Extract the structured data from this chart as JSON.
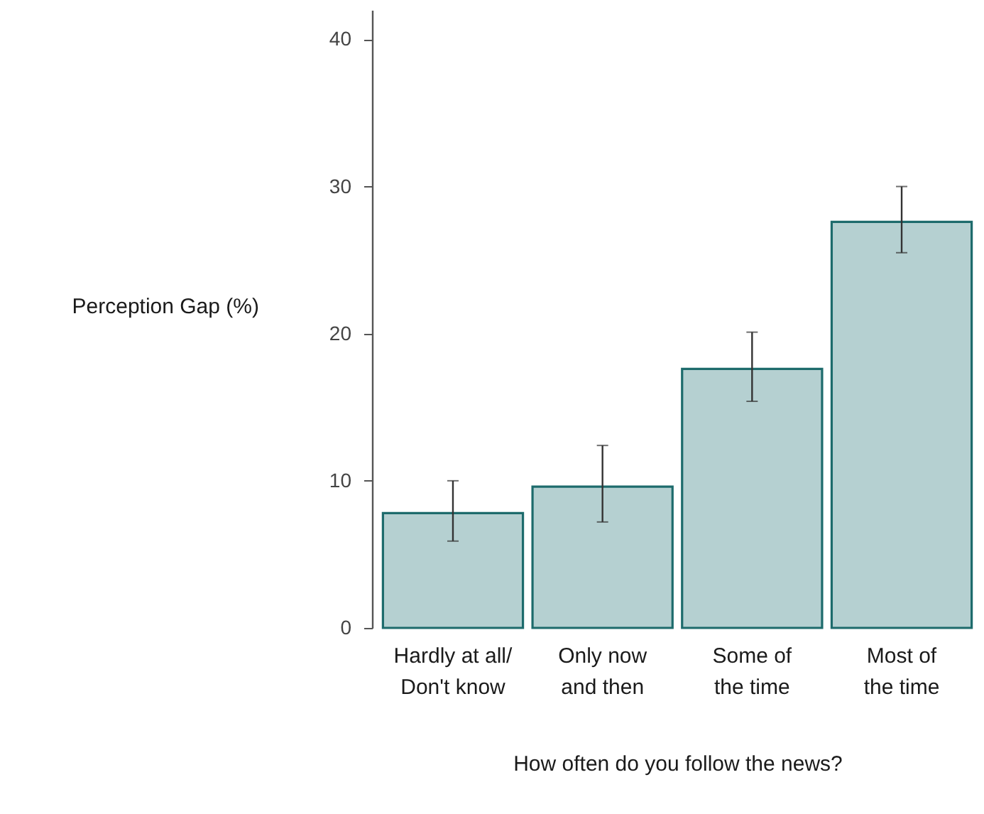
{
  "chart_data": {
    "type": "bar",
    "xlabel": "How often do you follow the news?",
    "ylabel": "Perception Gap (%)",
    "categories": [
      "Hardly at all/\nDon't know",
      "Only now\nand then",
      "Some of\nthe time",
      "Most of\nthe time"
    ],
    "values": [
      7.8,
      9.6,
      17.6,
      27.6
    ],
    "errors": [
      [
        5.9,
        10.0
      ],
      [
        7.2,
        12.4
      ],
      [
        15.4,
        20.1
      ],
      [
        25.5,
        30.0
      ]
    ],
    "color": "#b5d0d1",
    "ylim": [
      0,
      42
    ],
    "yticks": [
      0,
      10,
      20,
      30,
      40
    ]
  }
}
